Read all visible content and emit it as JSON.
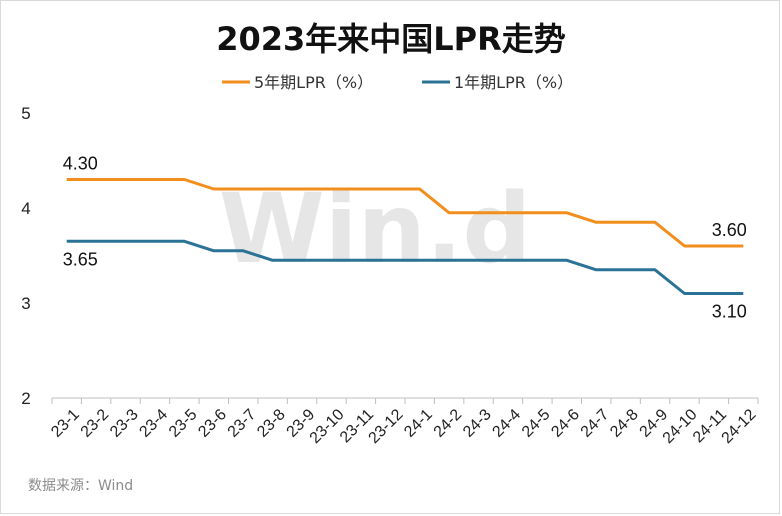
{
  "watermark": "Win.d",
  "source": "数据来源：Wind",
  "chart_data": {
    "type": "line",
    "title": "2023年来中国LPR走势",
    "categories": [
      "23-1",
      "23-2",
      "23-3",
      "23-4",
      "23-5",
      "23-6",
      "23-7",
      "23-8",
      "23-9",
      "23-10",
      "23-11",
      "23-12",
      "24-1",
      "24-2",
      "24-3",
      "24-4",
      "24-5",
      "24-6",
      "24-7",
      "24-8",
      "24-9",
      "24-10",
      "24-11",
      "24-12"
    ],
    "ylim": [
      2,
      5
    ],
    "yticks": [
      2,
      3,
      4,
      5
    ],
    "grid": false,
    "legend_position": "top",
    "series": [
      {
        "name": "5年期LPR（%）",
        "color": "#f28e1c",
        "values": [
          4.3,
          4.3,
          4.3,
          4.3,
          4.3,
          4.2,
          4.2,
          4.2,
          4.2,
          4.2,
          4.2,
          4.2,
          4.2,
          3.95,
          3.95,
          3.95,
          3.95,
          3.95,
          3.85,
          3.85,
          3.85,
          3.6,
          3.6,
          3.6
        ],
        "labels": [
          {
            "index": 0,
            "text": "4.30",
            "pos": "above"
          },
          {
            "index": 23,
            "text": "3.60",
            "pos": "above"
          }
        ]
      },
      {
        "name": "1年期LPR（%）",
        "color": "#2b7396",
        "values": [
          3.65,
          3.65,
          3.65,
          3.65,
          3.65,
          3.55,
          3.55,
          3.45,
          3.45,
          3.45,
          3.45,
          3.45,
          3.45,
          3.45,
          3.45,
          3.45,
          3.45,
          3.45,
          3.35,
          3.35,
          3.35,
          3.1,
          3.1,
          3.1
        ],
        "labels": [
          {
            "index": 0,
            "text": "3.65",
            "pos": "below"
          },
          {
            "index": 23,
            "text": "3.10",
            "pos": "below"
          }
        ]
      }
    ]
  }
}
